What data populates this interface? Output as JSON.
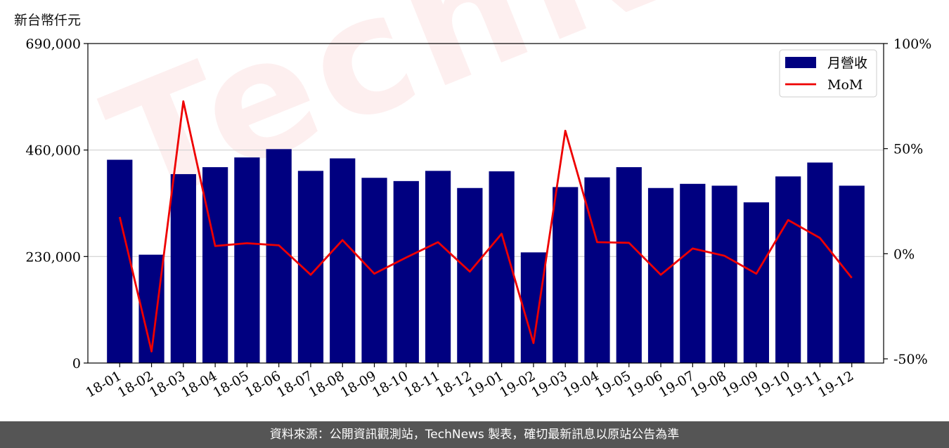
{
  "chart_data": {
    "type": "bar",
    "unit_label": "新台幣仟元",
    "categories": [
      "18-01",
      "18-02",
      "18-03",
      "18-04",
      "18-05",
      "18-06",
      "18-07",
      "18-08",
      "18-09",
      "18-10",
      "18-11",
      "18-12",
      "19-01",
      "19-02",
      "19-03",
      "19-04",
      "19-05",
      "19-06",
      "19-07",
      "19-08",
      "19-09",
      "19-10",
      "19-11",
      "19-12"
    ],
    "series": [
      {
        "name": "月營收",
        "type": "bar",
        "axis": "left",
        "color": "#000080",
        "values": [
          439000,
          234000,
          408000,
          423000,
          444000,
          462000,
          415000,
          442000,
          400000,
          393000,
          415000,
          378000,
          414000,
          239000,
          380000,
          401000,
          423000,
          378000,
          387000,
          383000,
          347000,
          403000,
          433000,
          383000
        ]
      },
      {
        "name": "MoM",
        "type": "line",
        "axis": "right",
        "color": "#ee0000",
        "values": [
          17.5,
          -46.5,
          72.5,
          3.7,
          5.0,
          4.0,
          -10.0,
          6.5,
          -9.5,
          -1.8,
          5.5,
          -8.5,
          9.5,
          -42.5,
          58.5,
          5.5,
          5.2,
          -10.0,
          2.5,
          -1.0,
          -9.5,
          16.0,
          7.5,
          -11.5
        ]
      }
    ],
    "y_left": {
      "ticks": [
        0,
        230000,
        460000,
        690000
      ],
      "tick_labels": [
        "0",
        "230,000",
        "460,000",
        "690,000"
      ],
      "ylim": [
        0,
        690000
      ]
    },
    "y_right": {
      "ticks": [
        -50,
        0,
        50,
        100
      ],
      "tick_labels": [
        "-50%",
        "0%",
        "50%",
        "100%"
      ],
      "ylim": [
        -52,
        100
      ]
    },
    "grid": "horizontal",
    "legend": "top-right"
  },
  "watermark": "TechNews",
  "footer_text": "資料來源：公開資訊觀測站，TechNews 製表，確切最新訊息以原站公告為準"
}
